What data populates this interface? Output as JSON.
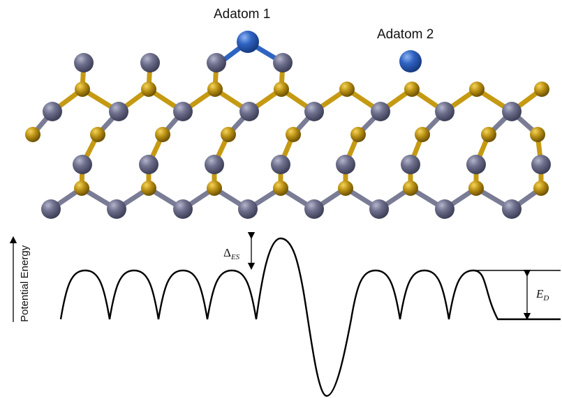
{
  "labels": {
    "adatom1": "Adatom 1",
    "adatom2": "Adatom 2",
    "y_axis": "Potential Energy",
    "delta_symbol": "Δ",
    "delta_subscript": "ES",
    "ed_symbol": "E",
    "ed_subscript": "D"
  },
  "colors": {
    "host_atom": "#6d6f8c",
    "bridge_atom": "#b88f12",
    "adatom": "#2f63c2",
    "bond_gray": "#7a7c95",
    "bond_gold": "#c59a12",
    "curve": "#000000"
  },
  "energy_profile": {
    "description_terms": [
      "terrace barriers",
      "Ehrlich-Schwoebel barrier",
      "step-edge well",
      "desorption"
    ],
    "terrace_barriers_left": 4,
    "terrace_barriers_right": 3
  }
}
